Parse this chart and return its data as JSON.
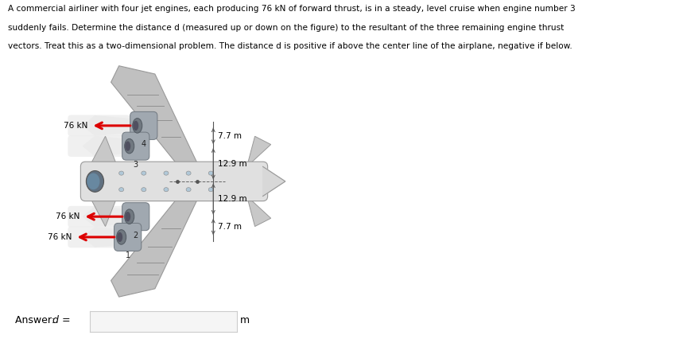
{
  "problem_text_line1": "A commercial airliner with four jet engines, each producing 76 kN of forward thrust, is in a steady, level cruise when engine number 3",
  "problem_text_line2": "suddenly fails. Determine the distance d (measured up or down on the figure) to the resultant of the three remaining engine thrust",
  "problem_text_line3": "vectors. Treat this as a two-dimensional problem. The distance d is positive if above the center line of the airplane, negative if below.",
  "answer_label": "Answer: d = ",
  "answer_unit": "m",
  "thrust_kn": "76 kN",
  "dim_7_7": "7.7 m",
  "dim_12_9": "12.9 m",
  "engine_labels": [
    "4",
    "3",
    "2",
    "1"
  ],
  "bg_color": "#c8dff0",
  "box_bg": "#ffffff",
  "answer_box_color": "#2e9fd4",
  "text_color": "#000000",
  "arrow_color": "#dd0000",
  "fuselage_color": "#d8d8d8",
  "wing_color": "#c0c0c0",
  "engine_color": "#a8b0b8",
  "exhaust_color": "#e8e8e8",
  "fig_width": 8.59,
  "fig_height": 4.26
}
